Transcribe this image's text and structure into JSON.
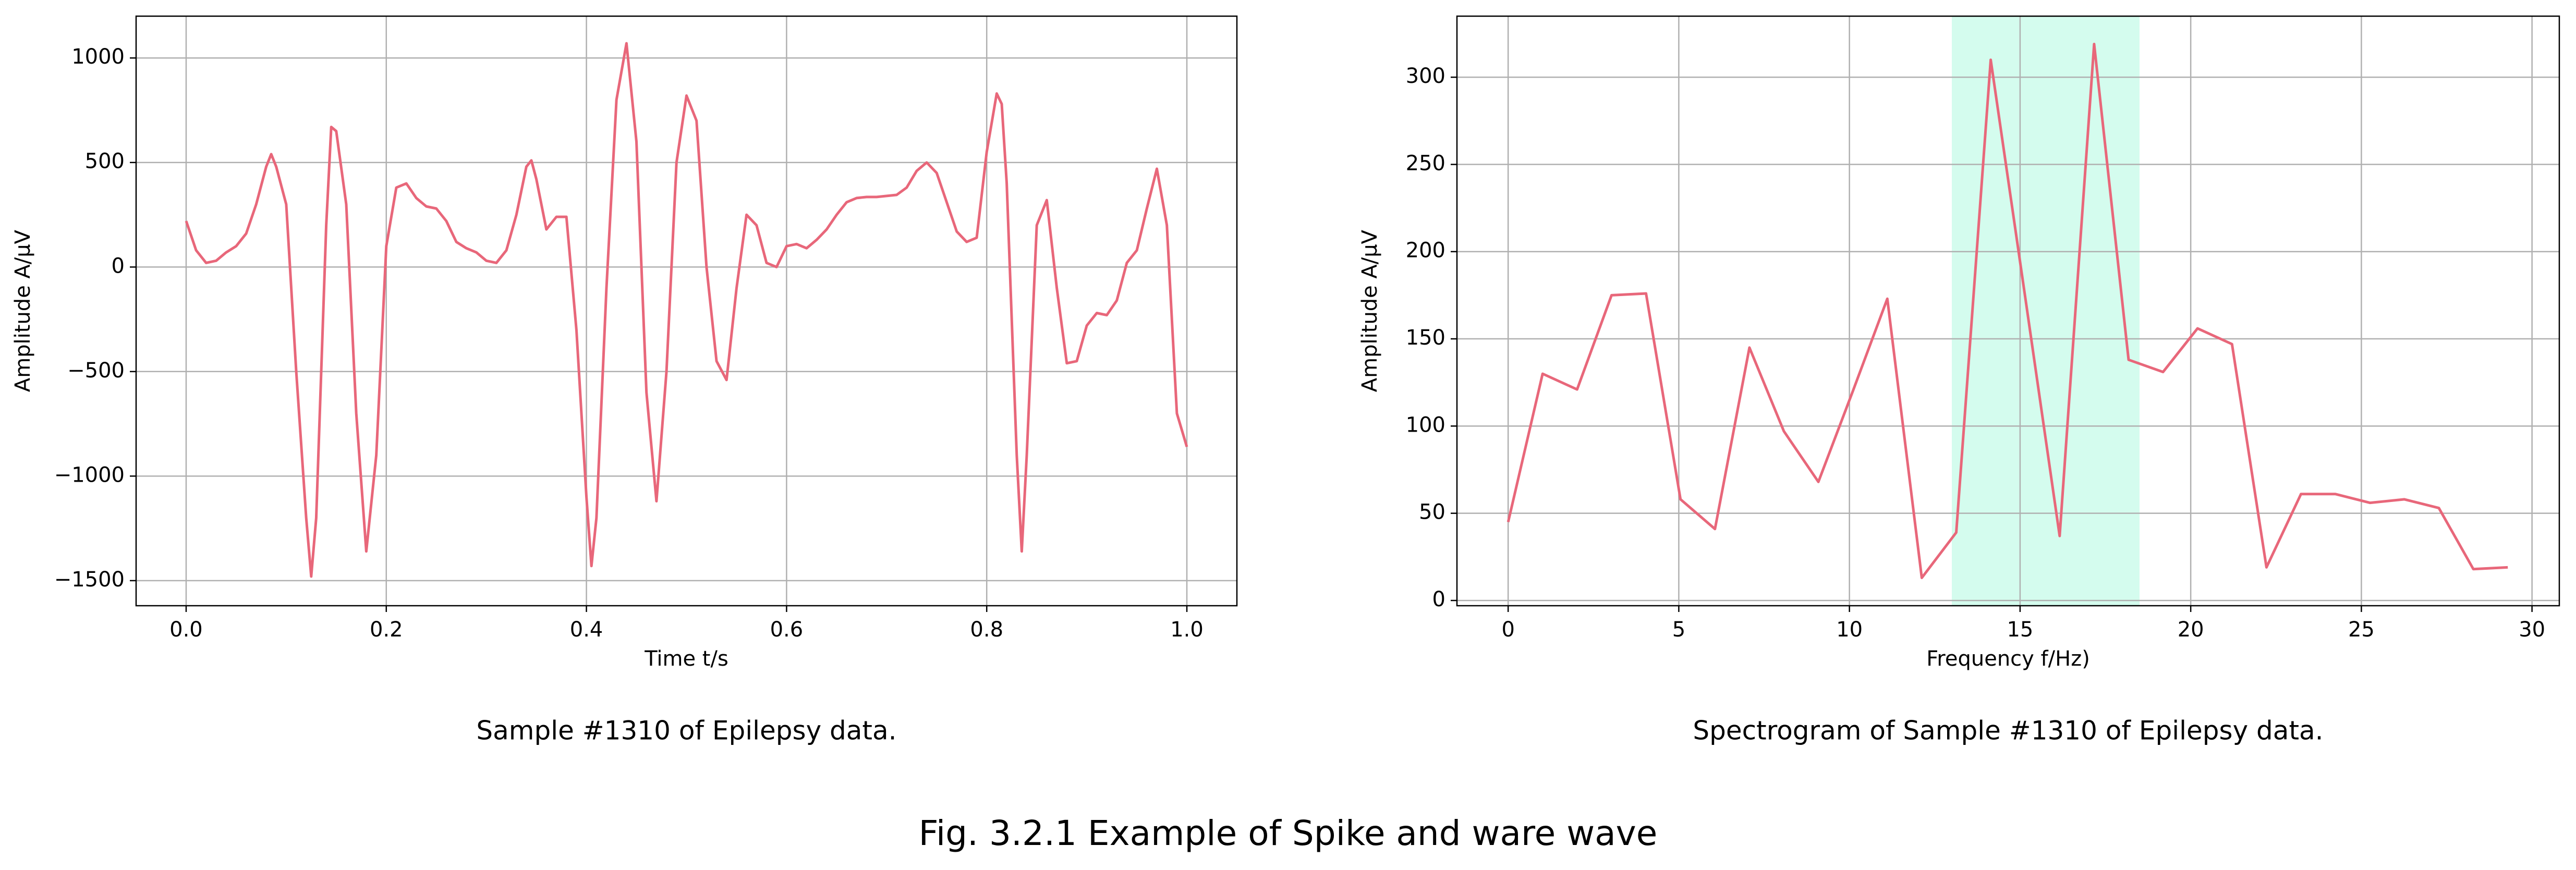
{
  "figure_title": "Fig. 3.2.1 Example of Spike and ware wave",
  "chart_data": [
    {
      "type": "line",
      "caption": "Sample #1310 of Epilepsy data.",
      "x_label": "Time t/s",
      "y_label": "Amplitude A/μV",
      "grid": true,
      "xlim": [
        -0.05,
        1.05
      ],
      "ylim": [
        -1620,
        1200
      ],
      "xticks": [
        {
          "value": 0,
          "label": "0.0"
        },
        {
          "value": 0.2,
          "label": "0.2"
        },
        {
          "value": 0.4,
          "label": "0.4"
        },
        {
          "value": 0.6,
          "label": "0.6"
        },
        {
          "value": 0.8,
          "label": "0.8"
        },
        {
          "value": 1,
          "label": "1.0"
        }
      ],
      "yticks": [
        {
          "value": -1500,
          "label": "−1500"
        },
        {
          "value": -1000,
          "label": "−1000"
        },
        {
          "value": -500,
          "label": "−500"
        },
        0,
        500,
        1000
      ],
      "x": [
        0,
        0.01,
        0.02,
        0.03,
        0.04,
        0.05,
        0.06,
        0.07,
        0.08,
        0.085,
        0.09,
        0.1,
        0.11,
        0.12,
        0.125,
        0.13,
        0.14,
        0.145,
        0.15,
        0.16,
        0.17,
        0.18,
        0.19,
        0.2,
        0.21,
        0.22,
        0.23,
        0.24,
        0.25,
        0.26,
        0.27,
        0.28,
        0.29,
        0.3,
        0.31,
        0.32,
        0.33,
        0.34,
        0.345,
        0.35,
        0.36,
        0.37,
        0.38,
        0.39,
        0.4,
        0.405,
        0.41,
        0.42,
        0.43,
        0.44,
        0.45,
        0.46,
        0.47,
        0.48,
        0.49,
        0.5,
        0.51,
        0.52,
        0.53,
        0.54,
        0.55,
        0.56,
        0.57,
        0.58,
        0.59,
        0.6,
        0.61,
        0.62,
        0.63,
        0.64,
        0.65,
        0.66,
        0.67,
        0.68,
        0.69,
        0.7,
        0.71,
        0.72,
        0.73,
        0.74,
        0.75,
        0.76,
        0.77,
        0.78,
        0.79,
        0.8,
        0.81,
        0.815,
        0.82,
        0.83,
        0.835,
        0.84,
        0.85,
        0.86,
        0.87,
        0.88,
        0.89,
        0.9,
        0.91,
        0.92,
        0.93,
        0.94,
        0.95,
        0.96,
        0.97,
        0.98,
        0.99,
        1
      ],
      "series": [
        {
          "color": "#e8677a",
          "values": [
            220,
            80,
            20,
            30,
            70,
            100,
            160,
            300,
            480,
            540,
            480,
            300,
            -500,
            -1200,
            -1480,
            -1200,
            200,
            670,
            650,
            300,
            -700,
            -1360,
            -900,
            100,
            380,
            400,
            330,
            290,
            280,
            220,
            120,
            90,
            70,
            30,
            20,
            80,
            250,
            480,
            510,
            420,
            180,
            240,
            240,
            -300,
            -1100,
            -1430,
            -1200,
            -100,
            800,
            1070,
            600,
            -600,
            -1120,
            -500,
            500,
            820,
            700,
            0,
            -450,
            -540,
            -100,
            250,
            200,
            20,
            0,
            100,
            110,
            90,
            130,
            180,
            250,
            310,
            330,
            335,
            335,
            340,
            345,
            380,
            460,
            500,
            450,
            310,
            170,
            120,
            140,
            550,
            830,
            780,
            400,
            -900,
            -1360,
            -900,
            200,
            320,
            -100,
            -460,
            -450,
            -280,
            -220,
            -230,
            -160,
            20,
            80,
            280,
            470,
            200,
            -700,
            -860
          ]
        }
      ]
    },
    {
      "type": "line",
      "caption": "Spectrogram of Sample #1310 of Epilepsy data.",
      "x_label": "Frequency f/Hz)",
      "y_label": "Amplitude A/μV",
      "grid": true,
      "xlim": [
        -1.5,
        30.8
      ],
      "ylim": [
        -3,
        335
      ],
      "xticks": [
        0,
        5,
        10,
        15,
        20,
        25,
        30
      ],
      "yticks": [
        0,
        50,
        100,
        150,
        200,
        250,
        300
      ],
      "highlight": {
        "x": [
          13,
          18.5
        ],
        "color": "#d4fcee"
      },
      "x": [
        0,
        1.01,
        2.02,
        3.03,
        4.04,
        5.05,
        6.06,
        7.07,
        8.08,
        9.09,
        10.1,
        11.11,
        12.12,
        13.13,
        14.14,
        15.15,
        16.16,
        17.17,
        18.18,
        19.19,
        20.2,
        21.21,
        22.22,
        23.23,
        24.24,
        25.25,
        26.26,
        27.27,
        28.28,
        29.29
      ],
      "series": [
        {
          "color": "#e8677a",
          "values": [
            45,
            130,
            121,
            175,
            176,
            58,
            41,
            145,
            97,
            68,
            120,
            173,
            13,
            39,
            310,
            174,
            37,
            319,
            138,
            131,
            156,
            147,
            19,
            61,
            61,
            56,
            58,
            53,
            18,
            19
          ]
        }
      ]
    }
  ]
}
